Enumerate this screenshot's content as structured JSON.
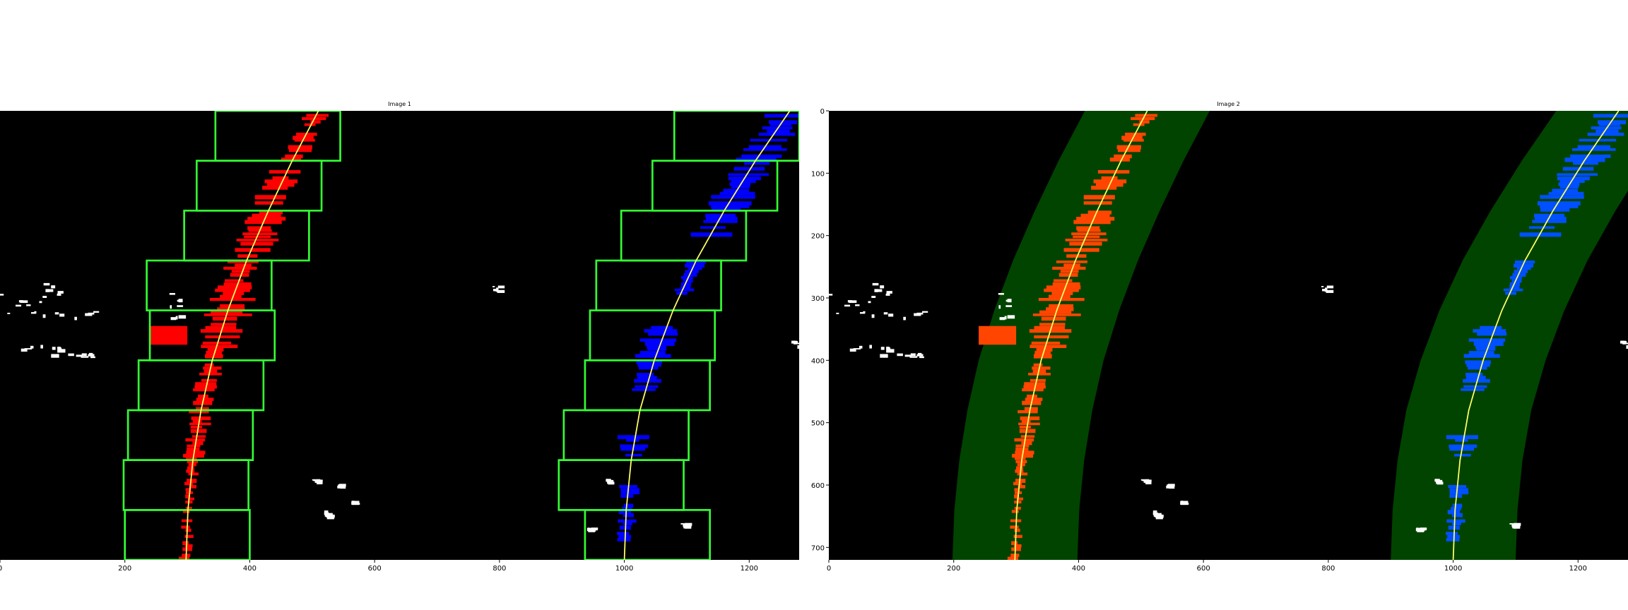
{
  "figure": {
    "panels": [
      {
        "title": "Image 1",
        "xlim": [
          0,
          1280
        ],
        "ylim": [
          720,
          0
        ],
        "xticks": [
          0,
          200,
          400,
          600,
          800,
          1000,
          1200
        ],
        "yticks": [],
        "mode": "sliding-windows"
      },
      {
        "title": "Image 2",
        "xlim": [
          0,
          1280
        ],
        "ylim": [
          720,
          0
        ],
        "xticks": [
          0,
          200,
          400,
          600,
          800,
          1000,
          1200
        ],
        "yticks": [
          0,
          100,
          200,
          300,
          400,
          500,
          600,
          700
        ],
        "mode": "search-band"
      }
    ],
    "colors": {
      "background": "#000000",
      "left_lane_pixels_1": "#ff0000",
      "right_lane_pixels_1": "#0000ff",
      "left_lane_pixels_2": "#ff4500",
      "right_lane_pixels_2": "#0050ff",
      "windows": "#33ff33",
      "fit_line": "#ffff66",
      "search_band": "#004400",
      "other_pixels": "#ffffff"
    },
    "left_fit": {
      "y": [
        0,
        80,
        160,
        240,
        320,
        400,
        480,
        560,
        640,
        720
      ],
      "x": [
        510,
        468,
        430,
        395,
        365,
        340,
        322,
        309,
        301,
        298
      ]
    },
    "right_fit": {
      "y": [
        0,
        80,
        160,
        240,
        320,
        400,
        480,
        560,
        640,
        720
      ],
      "x": [
        1265,
        1210,
        1160,
        1115,
        1078,
        1048,
        1025,
        1011,
        1003,
        1000
      ]
    },
    "left_windows": [
      [
        345,
        545
      ],
      [
        315,
        515
      ],
      [
        295,
        495
      ],
      [
        235,
        435
      ],
      [
        240,
        440
      ],
      [
        222,
        422
      ],
      [
        205,
        405
      ],
      [
        198,
        398
      ],
      [
        200,
        400
      ]
    ],
    "right_windows": [
      [
        1080,
        1280
      ],
      [
        1045,
        1245
      ],
      [
        995,
        1195
      ],
      [
        955,
        1155
      ],
      [
        945,
        1145
      ],
      [
        937,
        1137
      ],
      [
        903,
        1103
      ],
      [
        895,
        1095
      ],
      [
        937,
        1137
      ]
    ],
    "band_halfwidth": 100
  }
}
